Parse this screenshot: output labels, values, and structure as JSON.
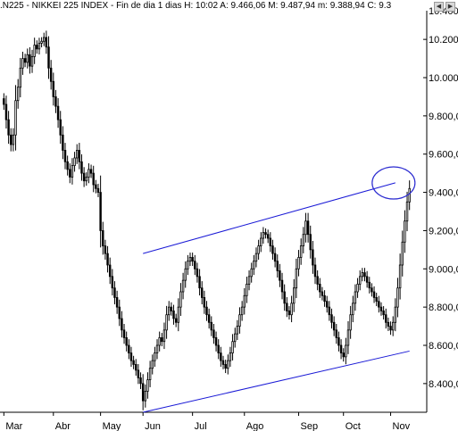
{
  "header": {
    "symbol": ".N225",
    "name": "NIKKEI 225 INDEX",
    "period": "Fin de dia 1 dias",
    "hour_label": "H:",
    "hour_value": "10:02",
    "open_label": "A:",
    "open_value": "9.466,06",
    "high_label": "M:",
    "high_value": "9.487,94",
    "low_label": "m:",
    "low_value": "9.388,94",
    "close_label": "C:",
    "close_value": "9.3"
  },
  "colors": {
    "background": "#ffffff",
    "candle": "#000000",
    "trend_lines": "#1a1ad6",
    "highlight_circle": "#2a2ad0",
    "axis": "#000000"
  },
  "chart_data": {
    "type": "candlestick",
    "title": "",
    "xlabel": "",
    "ylabel": "",
    "ylim": [
      8250,
      10350
    ],
    "y_ticks": [
      {
        "value": 10200,
        "label": "10.200,0"
      },
      {
        "value": 10000,
        "label": "10.000,0"
      },
      {
        "value": 9800,
        "label": "9.800,00"
      },
      {
        "value": 9600,
        "label": "9.600,00"
      },
      {
        "value": 9400,
        "label": "9.400,00"
      },
      {
        "value": 9200,
        "label": "9.200,00"
      },
      {
        "value": 9000,
        "label": "9.000,00"
      },
      {
        "value": 8800,
        "label": "8.800,00"
      },
      {
        "value": 8600,
        "label": "8.600,00"
      },
      {
        "value": 8400,
        "label": "8.400,00"
      }
    ],
    "top_tick_partial_label": "10.400",
    "x_ticks": [
      {
        "label": "Mar",
        "index": 0
      },
      {
        "label": "Abr",
        "index": 21
      },
      {
        "label": "May",
        "index": 41
      },
      {
        "label": "Jun",
        "index": 59
      },
      {
        "label": "Jul",
        "index": 80
      },
      {
        "label": "Ago",
        "index": 102
      },
      {
        "label": "Sep",
        "index": 125
      },
      {
        "label": "Oct",
        "index": 144
      },
      {
        "label": "Nov",
        "index": 164
      }
    ],
    "closes": [
      9860,
      9780,
      9700,
      9650,
      9700,
      9880,
      9950,
      10050,
      10100,
      10080,
      10120,
      10060,
      10110,
      10170,
      10150,
      10180,
      10190,
      10210,
      10160,
      10050,
      9980,
      9900,
      9850,
      9780,
      9700,
      9620,
      9560,
      9520,
      9480,
      9540,
      9580,
      9620,
      9560,
      9500,
      9460,
      9480,
      9520,
      9500,
      9440,
      9420,
      9400,
      9200,
      9120,
      9080,
      9020,
      8960,
      8900,
      8850,
      8800,
      8740,
      8680,
      8640,
      8600,
      8560,
      8520,
      8500,
      8470,
      8430,
      8400,
      8310,
      8360,
      8420,
      8480,
      8520,
      8560,
      8600,
      8640,
      8620,
      8680,
      8760,
      8800,
      8780,
      8740,
      8720,
      8800,
      8880,
      8940,
      9000,
      9040,
      9060,
      9040,
      9000,
      8960,
      8900,
      8850,
      8800,
      8760,
      8720,
      8680,
      8640,
      8600,
      8560,
      8520,
      8500,
      8480,
      8520,
      8560,
      8620,
      8660,
      8700,
      8760,
      8800,
      8860,
      8920,
      8960,
      9000,
      9040,
      9080,
      9120,
      9160,
      9190,
      9180,
      9160,
      9120,
      9080,
      9040,
      8990,
      8940,
      8880,
      8820,
      8780,
      8760,
      8820,
      8900,
      9000,
      9060,
      9120,
      9180,
      9250,
      9180,
      9100,
      9020,
      8960,
      8920,
      8880,
      8860,
      8830,
      8800,
      8760,
      8720,
      8680,
      8640,
      8600,
      8560,
      8540,
      8600,
      8680,
      8760,
      8820,
      8880,
      8920,
      8960,
      8980,
      8960,
      8930,
      8900,
      8880,
      8850,
      8830,
      8800,
      8780,
      8760,
      8720,
      8700,
      8680,
      8720,
      8800,
      8900,
      9020,
      9140,
      9250,
      9350,
      9420
    ],
    "trend_lines": [
      {
        "name": "upper",
        "from": {
          "index": 59,
          "value": 9080
        },
        "to": {
          "index": 166,
          "value": 9450
        }
      },
      {
        "name": "lower",
        "from": {
          "index": 59,
          "value": 8250
        },
        "to": {
          "index": 172,
          "value": 8570
        }
      }
    ],
    "highlight": {
      "index": 166,
      "value": 9440
    },
    "grid": false
  }
}
